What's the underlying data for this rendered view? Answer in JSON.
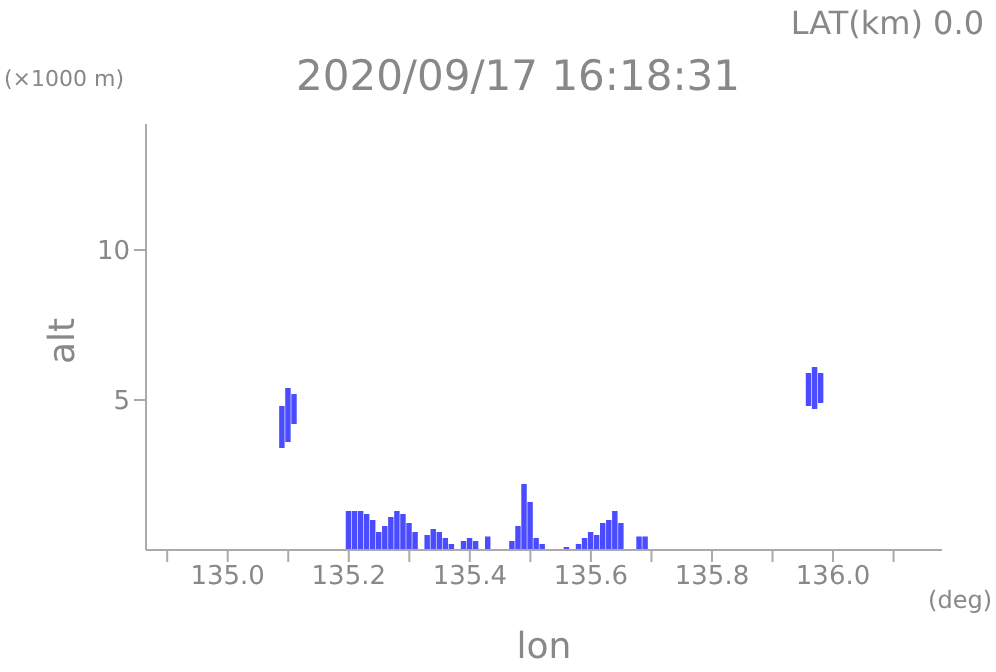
{
  "chart_data": {
    "type": "bar",
    "title": "2020/09/17 16:18:31",
    "subtitle": "LAT(km) 0.0",
    "xlabel": "lon",
    "ylabel": "alt",
    "annotations": [
      "(×1000 m)",
      "(deg)"
    ],
    "x": [
      135.09,
      135.1,
      135.11,
      135.2,
      135.21,
      135.22,
      135.23,
      135.24,
      135.25,
      135.26,
      135.27,
      135.28,
      135.29,
      135.3,
      135.31,
      135.33,
      135.34,
      135.35,
      135.36,
      135.37,
      135.39,
      135.4,
      135.41,
      135.43,
      135.47,
      135.48,
      135.49,
      135.5,
      135.51,
      135.52,
      135.56,
      135.58,
      135.59,
      135.6,
      135.61,
      135.62,
      135.63,
      135.64,
      135.65,
      135.68,
      135.69,
      135.96,
      135.97,
      135.98
    ],
    "base": [
      3.4,
      3.6,
      4.2,
      0,
      0,
      0,
      0,
      0,
      0,
      0,
      0,
      0,
      0,
      0,
      0,
      0,
      0,
      0,
      0,
      0,
      0,
      0,
      0,
      0,
      0,
      0,
      0,
      0,
      0,
      0,
      0,
      0,
      0,
      0,
      0,
      0,
      0,
      0,
      0,
      0,
      0,
      4.8,
      4.7,
      4.9
    ],
    "values": [
      1.4,
      1.8,
      1.0,
      1.3,
      1.3,
      1.3,
      1.2,
      1.0,
      0.6,
      0.8,
      1.1,
      1.3,
      1.2,
      0.9,
      0.6,
      0.5,
      0.7,
      0.6,
      0.4,
      0.2,
      0.3,
      0.4,
      0.3,
      0.45,
      0.3,
      0.8,
      2.2,
      1.6,
      0.4,
      0.2,
      0.1,
      0.2,
      0.4,
      0.6,
      0.5,
      0.9,
      1.0,
      1.3,
      0.9,
      0.45,
      0.45,
      1.1,
      1.4,
      1.0
    ],
    "color": "#4b4bff",
    "xlim": [
      134.865,
      136.18
    ],
    "xticks": [
      {
        "value": 134.9,
        "label": null
      },
      {
        "value": 135,
        "label": "135.0"
      },
      {
        "value": 135.1,
        "label": null
      },
      {
        "value": 135.2,
        "label": "135.2"
      },
      {
        "value": 135.3,
        "label": null
      },
      {
        "value": 135.4,
        "label": "135.4"
      },
      {
        "value": 135.5,
        "label": null
      },
      {
        "value": 135.6,
        "label": "135.6"
      },
      {
        "value": 135.7,
        "label": null
      },
      {
        "value": 135.8,
        "label": "135.8"
      },
      {
        "value": 135.9,
        "label": null
      },
      {
        "value": 136,
        "label": "136.0"
      },
      {
        "value": 136.1,
        "label": null
      }
    ],
    "ylim": [
      0,
      14.2
    ],
    "yticks": [
      5,
      10
    ],
    "grid": false,
    "legend": false
  }
}
